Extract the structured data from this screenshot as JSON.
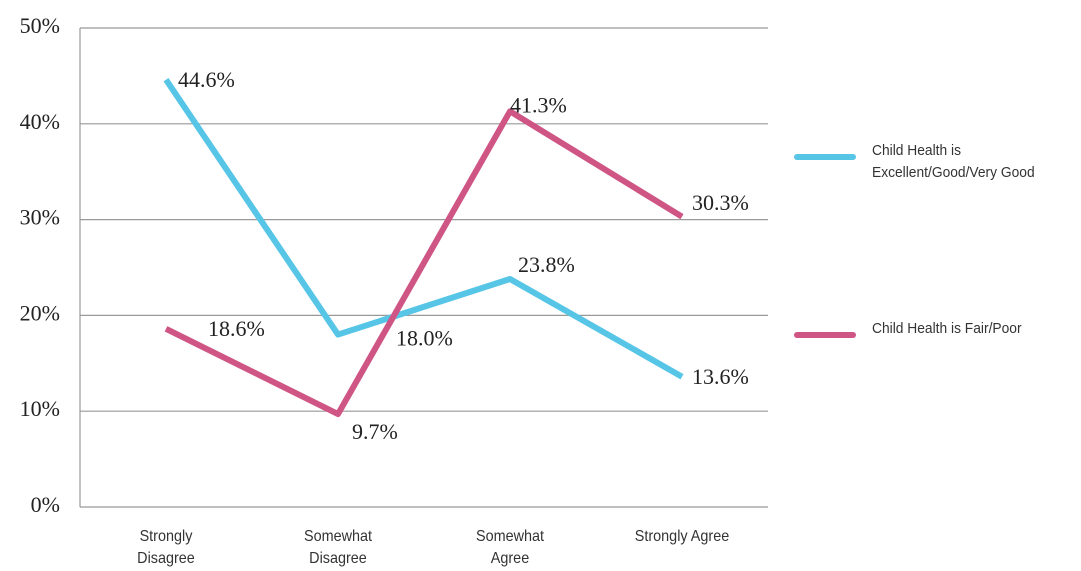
{
  "chart_data": {
    "type": "line",
    "categories": [
      "Strongly Disagree",
      "Somewhat Disagree",
      "Somewhat Agree",
      "Strongly Agree"
    ],
    "series": [
      {
        "name": "Child Health is Excellent/Good/Very Good",
        "color": "#56c5e6",
        "values": [
          44.6,
          18.0,
          23.8,
          13.6
        ],
        "value_labels": [
          "44.6%",
          "18.0%",
          "23.8%",
          "13.6%"
        ]
      },
      {
        "name": "Child Health is Fair/Poor",
        "color": "#cf5585",
        "values": [
          18.6,
          9.7,
          41.3,
          30.3
        ],
        "value_labels": [
          "18.6%",
          "9.7%",
          "41.3%",
          "30.3%"
        ]
      }
    ],
    "ylim": [
      0,
      50
    ],
    "yticks": [
      {
        "value": 0,
        "label": "0%"
      },
      {
        "value": 10,
        "label": "10%"
      },
      {
        "value": 20,
        "label": "20%"
      },
      {
        "value": 30,
        "label": "30%"
      },
      {
        "value": 40,
        "label": "40%"
      },
      {
        "value": 50,
        "label": "50%"
      }
    ],
    "grid": true,
    "legend": "right"
  }
}
